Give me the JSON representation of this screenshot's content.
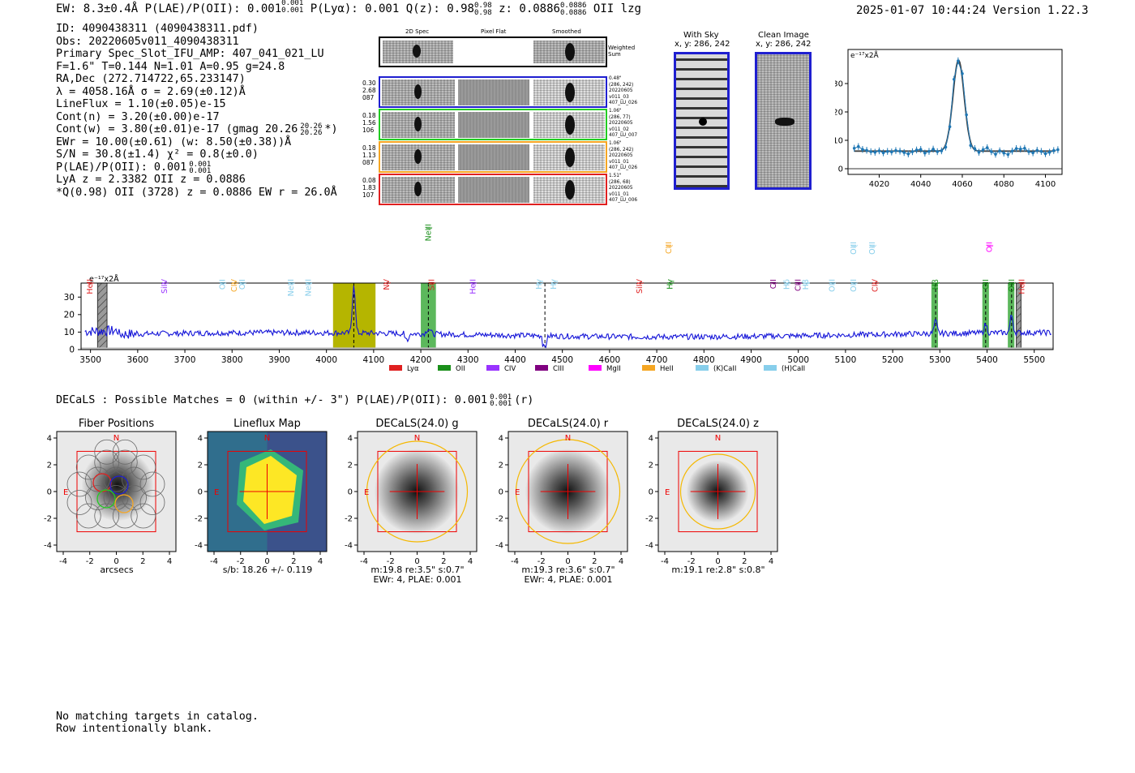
{
  "header": {
    "left": "EW: 8.3±0.4Å  P(LAE)/P(OII): 0.001",
    "plae_sup": "0.001",
    "plae_sub": "0.001",
    "plya": "P(Lyα): 0.001  Q(z): 0.98",
    "q_sup": "0.98",
    "q_sub": "0.98",
    "z": "z: 0.0886",
    "z_sup": "0.0886",
    "z_sub": "0.0886",
    "tail": "OII   lzg",
    "right": "2025-01-07 10:44:24  Version 1.22.3"
  },
  "info": {
    "l1": "ID: 4090438311 (4090438311.pdf)",
    "l2": "Obs: 20220605v011_4090438311",
    "l3": "Primary Spec_Slot_IFU_AMP: 407_041_021_LU",
    "l4": "F=1.6\"  T=0.144  N=1.01  A=0.95  g=24.8",
    "l5": "RA,Dec (272.714722,65.233147)",
    "l6": "λ = 4058.16Å  σ = 2.69(±0.12)Å",
    "l7": "LineFlux = 1.10(±0.05)e-15",
    "l8": "Cont(n) = 3.20(±0.00)e-17",
    "l9": "Cont(w) = 3.80(±0.01)e-17 (gmag 20.26",
    "l9_sup": "20.26",
    "l9_sub": "20.26",
    "l9_tail": "*)",
    "l10": "EWr = 10.00(±0.61) (w: 8.50(±0.38))Å",
    "l11": "S/N = 30.8(±1.4)  χ² = 0.8(±0.0)",
    "l12": "P(LAE)/P(OII): 0.001",
    "l12_sup": "0.001",
    "l12_sub": "0.001",
    "l13": "LyA z = 2.3382  OII z = 0.0886",
    "l14": "*Q(0.98) OII (3728) z = 0.0886  EW r = 26.0Å"
  },
  "spec2d": {
    "col_titles": [
      "2D Spec",
      "Pixel Flat",
      "Smoothed"
    ],
    "weighted": "Weighted\nSum",
    "rows": [
      {
        "left": [
          "0.30",
          "2.68",
          "087"
        ],
        "right": [
          "0.48\"",
          "(286, 242)",
          "20220605",
          "v011_03",
          "407_LU_026"
        ],
        "color": "#1f1fd0"
      },
      {
        "left": [
          "0.18",
          "1.56",
          "106"
        ],
        "right": [
          "1.06\"",
          "(286, 77)",
          "20220605",
          "v011_02",
          "407_LU_007"
        ],
        "color": "#22cc22"
      },
      {
        "left": [
          "0.18",
          "1.13",
          "087"
        ],
        "right": [
          "1.06\"",
          "(286, 242)",
          "20220605",
          "v011_01",
          "407_LU_026"
        ],
        "color": "#f5a623"
      },
      {
        "left": [
          "0.08",
          "1.83",
          "107"
        ],
        "right": [
          "1.51\"",
          "(286, 68)",
          "20220605",
          "v011_01",
          "407_LU_006"
        ],
        "color": "#e02020"
      }
    ]
  },
  "withsky": {
    "title": "With Sky",
    "sub": "x, y: 286, 242"
  },
  "clean": {
    "title": "Clean Image",
    "sub": "x, y: 286, 242"
  },
  "fit": {
    "type": "line",
    "unit_label": "e⁻¹⁷x2Å",
    "xlim": [
      4005,
      4108
    ],
    "ylim": [
      -2,
      42
    ],
    "xticks": [
      4020,
      4040,
      4060,
      4080,
      4100
    ],
    "yticks": [
      0,
      10,
      20,
      30
    ],
    "continuum": 6.2,
    "center": 4058.2,
    "sigma": 2.7,
    "amp": 32,
    "points": [
      [
        4008,
        7.2
      ],
      [
        4010,
        7.8
      ],
      [
        4012,
        6.8
      ],
      [
        4014,
        6.5
      ],
      [
        4016,
        6.0
      ],
      [
        4018,
        5.8
      ],
      [
        4020,
        6.3
      ],
      [
        4022,
        5.6
      ],
      [
        4024,
        6.1
      ],
      [
        4026,
        5.9
      ],
      [
        4028,
        6.4
      ],
      [
        4030,
        6.2
      ],
      [
        4032,
        5.7
      ],
      [
        4034,
        5.2
      ],
      [
        4036,
        6.0
      ],
      [
        4038,
        6.6
      ],
      [
        4040,
        6.8
      ],
      [
        4042,
        5.5
      ],
      [
        4044,
        6.1
      ],
      [
        4046,
        6.9
      ],
      [
        4048,
        6.0
      ],
      [
        4050,
        6.3
      ],
      [
        4052,
        7.6
      ],
      [
        4054,
        14.8
      ],
      [
        4056,
        31.5
      ],
      [
        4058,
        38.0
      ],
      [
        4060,
        33.5
      ],
      [
        4062,
        19.0
      ],
      [
        4064,
        8.2
      ],
      [
        4066,
        7.1
      ],
      [
        4068,
        5.8
      ],
      [
        4070,
        6.7
      ],
      [
        4072,
        7.4
      ],
      [
        4074,
        6.0
      ],
      [
        4076,
        5.1
      ],
      [
        4078,
        6.3
      ],
      [
        4080,
        5.5
      ],
      [
        4082,
        5.0
      ],
      [
        4084,
        6.2
      ],
      [
        4086,
        7.1
      ],
      [
        4088,
        6.9
      ],
      [
        4090,
        7.2
      ],
      [
        4092,
        6.0
      ],
      [
        4094,
        5.6
      ],
      [
        4096,
        6.5
      ],
      [
        4098,
        6.1
      ],
      [
        4100,
        5.3
      ],
      [
        4102,
        5.8
      ],
      [
        4104,
        6.4
      ],
      [
        4106,
        6.7
      ]
    ]
  },
  "chart_data": {
    "type": "line",
    "title": "",
    "unit_label": "e⁻¹⁷x2Å",
    "xlim": [
      3480,
      5540
    ],
    "ylim": [
      0,
      38
    ],
    "xticks": [
      3500,
      3600,
      3700,
      3800,
      3900,
      4000,
      4100,
      4200,
      4300,
      4400,
      4500,
      4600,
      4700,
      4800,
      4900,
      5000,
      5100,
      5200,
      5300,
      5400,
      5500
    ],
    "yticks": [
      0,
      10,
      20,
      30
    ],
    "baseline": 8.5,
    "emission": [
      {
        "center": 4058,
        "amp": 28,
        "sigma": 3
      },
      {
        "center": 4216,
        "amp": 3,
        "sigma": 4
      },
      {
        "center": 5291,
        "amp": 7,
        "sigma": 3
      },
      {
        "center": 5397,
        "amp": 5,
        "sigma": 3
      },
      {
        "center": 5452,
        "amp": 10,
        "sigma": 3
      }
    ],
    "bands": [
      {
        "from": 4014,
        "to": 4104,
        "color": "#b5b500"
      },
      {
        "from": 4200,
        "to": 4232,
        "color": "#5cb85c"
      },
      {
        "from": 5282,
        "to": 5296,
        "color": "#5cb85c"
      },
      {
        "from": 5390,
        "to": 5404,
        "color": "#5cb85c"
      },
      {
        "from": 5444,
        "to": 5458,
        "color": "#5cb85c"
      },
      {
        "from": 3515,
        "to": 3535,
        "color": "#999999",
        "hatch": true
      },
      {
        "from": 5462,
        "to": 5472,
        "color": "#999999",
        "hatch": true
      }
    ],
    "dashed_lines": [
      4058,
      4216,
      4463,
      5291,
      5397,
      5452
    ],
    "line_ids": [
      {
        "name": "HeII",
        "x": 3499,
        "color": "#e02020",
        "level": 0
      },
      {
        "name": "SiIV",
        "x": 3657,
        "color": "#9933ff",
        "level": 0
      },
      {
        "name": "OII",
        "x": 3780,
        "color": "#87ceeb",
        "level": 0
      },
      {
        "name": "CIV",
        "x": 3805,
        "color": "#f5a623",
        "level": 0
      },
      {
        "name": "OII",
        "x": 3822,
        "color": "#87ceeb",
        "level": 0
      },
      {
        "name": "NeIII",
        "x": 3925,
        "color": "#87ceeb",
        "level": 0
      },
      {
        "name": "NeIII",
        "x": 3962,
        "color": "#87ceeb",
        "level": 0
      },
      {
        "name": "NV",
        "x": 4128,
        "color": "#e02020",
        "level": 0
      },
      {
        "name": "NeIII",
        "x": 4216,
        "color": "#1a8f1a",
        "level": 2
      },
      {
        "name": "SiII",
        "x": 4223,
        "color": "#e02020",
        "level": 0
      },
      {
        "name": "HeII",
        "x": 4311,
        "color": "#9933ff",
        "level": 0
      },
      {
        "name": "Hγ",
        "x": 4451,
        "color": "#87ceeb",
        "level": 0
      },
      {
        "name": "Hγ",
        "x": 4482,
        "color": "#87ceeb",
        "level": 0
      },
      {
        "name": "SiIV",
        "x": 4664,
        "color": "#e02020",
        "level": 0
      },
      {
        "name": "CIII",
        "x": 4726,
        "color": "#f5a623",
        "level": 1
      },
      {
        "name": "Hγ",
        "x": 4728,
        "color": "#1a8f1a",
        "level": 0
      },
      {
        "name": "CII",
        "x": 4947,
        "color": "#800080",
        "level": 0
      },
      {
        "name": "Hδ",
        "x": 4976,
        "color": "#87ceeb",
        "level": 0
      },
      {
        "name": "CIII",
        "x": 5000,
        "color": "#800080",
        "level": 0
      },
      {
        "name": "Hβ",
        "x": 5016,
        "color": "#87ceeb",
        "level": 0
      },
      {
        "name": "OIII",
        "x": 5072,
        "color": "#87ceeb",
        "level": 0
      },
      {
        "name": "OIII",
        "x": 5117,
        "color": "#87ceeb",
        "level": 0
      },
      {
        "name": "OIII",
        "x": 5117,
        "color": "#87ceeb",
        "level": 1
      },
      {
        "name": "OIII",
        "x": 5157,
        "color": "#87ceeb",
        "level": 1
      },
      {
        "name": "CIV",
        "x": 5163,
        "color": "#e02020",
        "level": 0
      },
      {
        "name": "Hβ",
        "x": 5291,
        "color": "#1a8f1a",
        "level": 0
      },
      {
        "name": "OII",
        "x": 5397,
        "color": "#1a8f1a",
        "level": 0
      },
      {
        "name": "OII",
        "x": 5405,
        "color": "#ff00ff",
        "level": 1
      },
      {
        "name": "OIII",
        "x": 5452,
        "color": "#1a8f1a",
        "level": 0
      },
      {
        "name": "HeII",
        "x": 5474,
        "color": "#e02020",
        "level": 0
      }
    ],
    "legend": [
      {
        "name": "Lyα",
        "color": "#e02020"
      },
      {
        "name": "OII",
        "color": "#1a8f1a"
      },
      {
        "name": "CIV",
        "color": "#9933ff"
      },
      {
        "name": "CIII",
        "color": "#800080"
      },
      {
        "name": "MgII",
        "color": "#ff00ff"
      },
      {
        "name": "HeII",
        "color": "#f5a623"
      },
      {
        "name": "(K)CaII",
        "color": "#87ceeb"
      },
      {
        "name": "(H)CaII",
        "color": "#87ceeb"
      }
    ]
  },
  "decals": {
    "line": "DECaLS : Possible Matches = 0 (within +/- 3\")  P(LAE)/P(OII): 0.001",
    "sup": "0.001",
    "sub": "0.001",
    "tail": "(r)"
  },
  "cutouts": [
    {
      "title": "Fiber Positions",
      "sub1": "arcsecs",
      "sub2": "",
      "kind": "fiber"
    },
    {
      "title": "Lineflux Map",
      "sub1": "s/b: 18.26 +/- 0.119",
      "sub2": "",
      "kind": "flux"
    },
    {
      "title": "DECaLS(24.0) g",
      "sub1": "m:19.8  re:3.5\"  s:0.7\"",
      "sub2": "EWr: 4, PLAE: 0.001",
      "kind": "img",
      "ell": 62
    },
    {
      "title": "DECaLS(24.0) r",
      "sub1": "m:19.3  re:3.6\"  s:0.7\"",
      "sub2": "EWr: 4, PLAE: 0.001",
      "kind": "img",
      "ell": 64
    },
    {
      "title": "DECaLS(24.0) z",
      "sub1": "m:19.1  re:2.8\"  s:0.8\"",
      "sub2": "",
      "kind": "img",
      "ell": 46
    }
  ],
  "cutout_axis": {
    "ticks": [
      -4,
      -2,
      0,
      2,
      4
    ],
    "north": "N",
    "east": "E"
  },
  "footer": {
    "l1": "No matching targets in catalog.",
    "l2": "Row intentionally blank."
  }
}
